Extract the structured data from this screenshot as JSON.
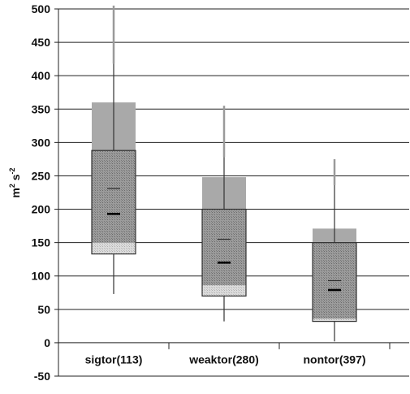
{
  "chart_data": {
    "type": "boxplot",
    "title": "",
    "xlabel": "",
    "ylabel": {
      "base": "m",
      "sup1": "2",
      "mid": " s",
      "sup2": "-2"
    },
    "ylim": [
      -50,
      500
    ],
    "yticks": [
      -50,
      0,
      50,
      100,
      150,
      200,
      250,
      300,
      350,
      400,
      450,
      500
    ],
    "grid": true,
    "categories": [
      "sigtor(113)",
      "weaktor(280)",
      "nontor(397)"
    ],
    "boxes": [
      {
        "category": "sigtor(113)",
        "p10": 73,
        "p25": 133,
        "median": 193,
        "mean": 231,
        "p75": 288,
        "p90": 418,
        "max": 505,
        "shade_low_top": 150,
        "shade_high_top": 360
      },
      {
        "category": "weaktor(280)",
        "p10": 32,
        "p25": 70,
        "median": 120,
        "mean": 155,
        "p75": 200,
        "p90": 278,
        "max": 355,
        "shade_low_top": 86,
        "shade_high_top": 248
      },
      {
        "category": "nontor(397)",
        "p10": 2,
        "p25": 32,
        "median": 79,
        "mean": 93,
        "p75": 150,
        "p90": 236,
        "max": 275,
        "shade_low_top": 36,
        "shade_high_top": 171
      }
    ],
    "colors": {
      "grid": "#222222",
      "box_border": "#333333",
      "upper_shade": "#a9a9a9",
      "lower_shade": "#cfcfcf",
      "whisker": "#333333",
      "max_whisker": "#9a9a9a"
    }
  }
}
